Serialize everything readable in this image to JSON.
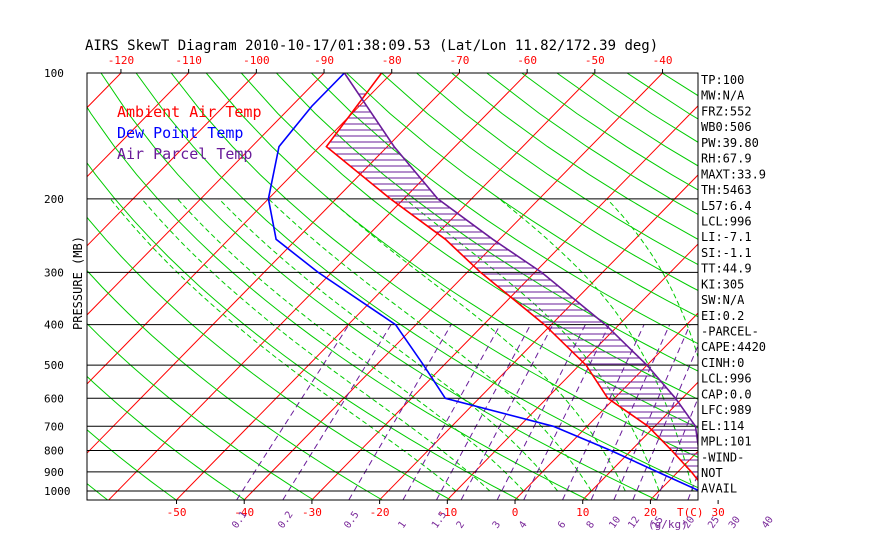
{
  "chart_data": {
    "type": "skewt",
    "title": "AIRS SkewT Diagram 2010-10-17/01:38:09.53 (Lat/Lon 11.82/172.39 deg)",
    "ylabel": "PRESSURE (MB)",
    "xlabel": "T(C)",
    "mixing_ratio_label": "(g/kg)",
    "top_temperature_ticks": [
      -120,
      -110,
      -100,
      -90,
      -80,
      -70,
      -60,
      -50,
      -40
    ],
    "bottom_temperature_ticks": [
      -50,
      -40,
      -30,
      -20,
      -10,
      0,
      10,
      20,
      30
    ],
    "pressure_ticks": [
      100,
      200,
      300,
      400,
      500,
      600,
      700,
      800,
      900,
      1000
    ],
    "mixing_ratio_ticks": [
      "0.1",
      "0.2",
      "0.5",
      "1",
      "1.5",
      "2",
      "3",
      "4",
      "6",
      "8",
      "10",
      "12",
      "15",
      "20",
      "25",
      "30",
      "40"
    ],
    "ylim": [
      1050,
      100
    ],
    "legend": [
      {
        "label": "Ambient Air Temp",
        "color": "#ff0000"
      },
      {
        "label": "Dew Point Temp",
        "color": "#0000ff"
      },
      {
        "label": "Air Parcel Temp",
        "color": "#6a1c9a"
      }
    ],
    "series": [
      {
        "name": "Ambient Air Temp",
        "points": [
          {
            "p": 100,
            "t": -81.5
          },
          {
            "p": 150,
            "t": -79
          },
          {
            "p": 200,
            "t": -62
          },
          {
            "p": 250,
            "t": -48
          },
          {
            "p": 300,
            "t": -38
          },
          {
            "p": 400,
            "t": -21
          },
          {
            "p": 500,
            "t": -9
          },
          {
            "p": 600,
            "t": -1
          },
          {
            "p": 700,
            "t": 9
          },
          {
            "p": 800,
            "t": 16
          },
          {
            "p": 900,
            "t": 22
          },
          {
            "p": 1000,
            "t": 27
          }
        ]
      },
      {
        "name": "Dew Point Temp",
        "points": [
          {
            "p": 100,
            "t": -87
          },
          {
            "p": 120,
            "t": -87
          },
          {
            "p": 150,
            "t": -86
          },
          {
            "p": 200,
            "t": -80
          },
          {
            "p": 250,
            "t": -73
          },
          {
            "p": 300,
            "t": -62
          },
          {
            "p": 400,
            "t": -43
          },
          {
            "p": 500,
            "t": -33
          },
          {
            "p": 600,
            "t": -25
          },
          {
            "p": 700,
            "t": -5
          },
          {
            "p": 800,
            "t": 7
          },
          {
            "p": 900,
            "t": 17
          },
          {
            "p": 1000,
            "t": 26
          }
        ]
      },
      {
        "name": "Air Parcel Temp",
        "points": [
          {
            "p": 100,
            "t": -87
          },
          {
            "p": 150,
            "t": -69
          },
          {
            "p": 200,
            "t": -55
          },
          {
            "p": 250,
            "t": -41
          },
          {
            "p": 300,
            "t": -29
          },
          {
            "p": 400,
            "t": -12
          },
          {
            "p": 500,
            "t": 0
          },
          {
            "p": 600,
            "t": 9
          },
          {
            "p": 700,
            "t": 16
          },
          {
            "p": 800,
            "t": 20
          },
          {
            "p": 900,
            "t": 24
          },
          {
            "p": 1000,
            "t": 27
          }
        ]
      }
    ],
    "indices": [
      "TP:100",
      "MW:N/A",
      "FRZ:552",
      "WB0:506",
      "PW:39.80",
      "RH:67.9",
      "MAXT:33.9",
      "TH:5463",
      "L57:6.4",
      "LCL:996",
      "LI:-7.1",
      "SI:-1.1",
      "TT:44.9",
      "KI:305",
      "SW:N/A",
      "EI:0.2",
      "-PARCEL-",
      "CAPE:4420",
      "CINH:0",
      "LCL:996",
      "CAP:0.0",
      "LFC:989",
      "EL:114",
      "MPL:101",
      "-WIND-",
      "NOT",
      "AVAIL"
    ],
    "colors": {
      "isotherm": "#ff0000",
      "dry_adiabat": "#00cc00",
      "moist_adiabat": "#00cc00",
      "mixing_ratio": "#6a1c9a",
      "isobar": "#000000",
      "hatch": "#6a1c9a",
      "axis_text": "#ff0000",
      "mixing_text": "#7a2a9a"
    }
  }
}
